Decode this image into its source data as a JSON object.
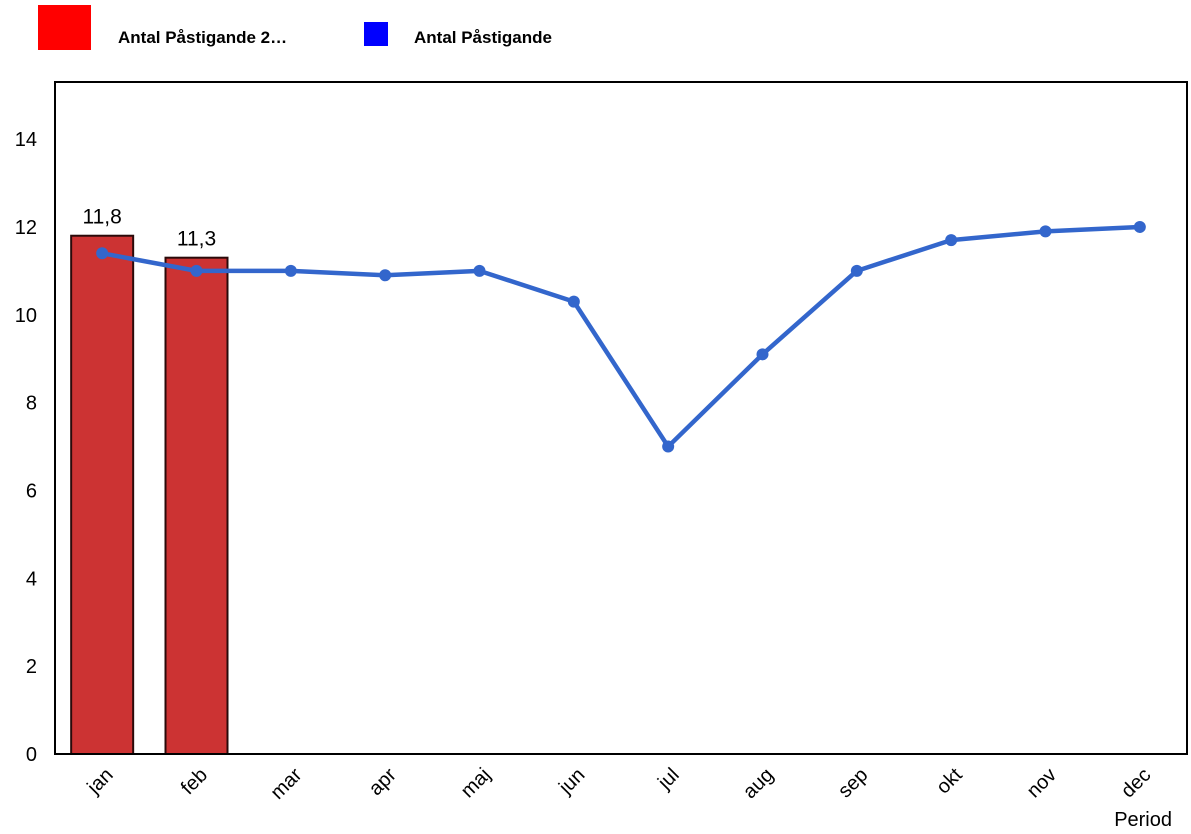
{
  "legend": {
    "items": [
      {
        "label": "Antal  Påstigande 2…",
        "color": "#ff0000"
      },
      {
        "label": "Antal Påstigande",
        "color": "#0000ff"
      }
    ]
  },
  "chart_data": {
    "type": "bar",
    "categories": [
      "jan",
      "feb",
      "mar",
      "apr",
      "maj",
      "jun",
      "jul",
      "aug",
      "sep",
      "okt",
      "nov",
      "dec"
    ],
    "series": [
      {
        "kind": "bar",
        "color": "#cc3333",
        "values": [
          11.8,
          11.3,
          null,
          null,
          null,
          null,
          null,
          null,
          null,
          null,
          null,
          null
        ],
        "data_labels": [
          "11,8",
          "11,3"
        ]
      },
      {
        "kind": "line",
        "color": "#3366cc",
        "values": [
          11.4,
          11.0,
          11.0,
          10.9,
          11.0,
          10.3,
          7.0,
          9.1,
          11.0,
          11.7,
          11.9,
          12.0
        ]
      }
    ],
    "xlabel": "Period",
    "ylabel": "",
    "ylim": [
      0,
      15.3
    ],
    "yticks": [
      0,
      2,
      4,
      6,
      8,
      10,
      12,
      14
    ],
    "grid": false
  }
}
